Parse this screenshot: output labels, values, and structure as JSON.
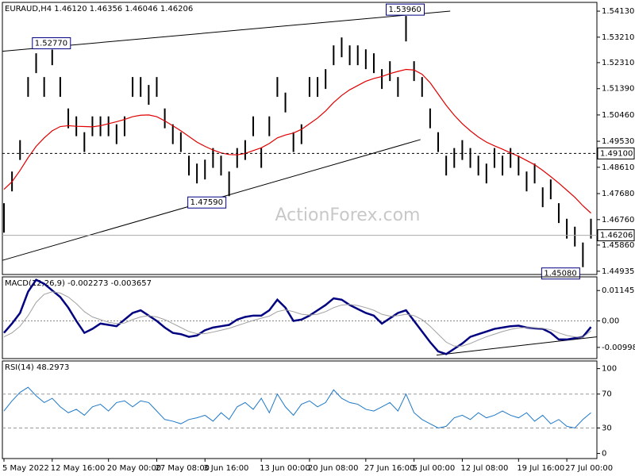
{
  "chart_data": [
    {
      "type": "ohlc",
      "title": "EURAUD,H4 1.46120 1.46356 1.46046 1.46206",
      "watermark": "ActionForex.com",
      "color": "#000000",
      "categories": [
        "5 May 2022",
        null,
        null,
        null,
        null,
        null,
        "12 May 16:00",
        null,
        null,
        null,
        null,
        null,
        null,
        "20 May 00:00",
        null,
        null,
        null,
        null,
        null,
        "27 May 08:00",
        null,
        null,
        null,
        null,
        null,
        "3 Jun 16:00",
        null,
        null,
        null,
        null,
        null,
        null,
        "13 Jun 00:00",
        null,
        null,
        null,
        null,
        null,
        "20 Jun 08:00",
        null,
        null,
        null,
        null,
        null,
        null,
        "27 Jun 16:00",
        null,
        null,
        null,
        null,
        null,
        "5 Jul 00:00",
        null,
        null,
        null,
        null,
        null,
        "12 Jul 08:00",
        null,
        null,
        null,
        null,
        null,
        null,
        "19 Jul 16:00",
        null,
        null,
        null,
        null,
        null,
        "27 Jul 00:00",
        null,
        null,
        null
      ],
      "high": [
        1.4734,
        1.4846,
        1.4957,
        1.518,
        1.5264,
        1.518,
        1.5277,
        1.518,
        1.5069,
        1.5041,
        1.4985,
        1.5041,
        1.5041,
        1.5041,
        1.5013,
        1.5041,
        1.518,
        1.518,
        1.5152,
        1.518,
        1.5069,
        1.5013,
        1.4985,
        1.4902,
        1.4874,
        1.4888,
        1.4929,
        1.4902,
        1.4846,
        1.4929,
        1.4957,
        1.5041,
        1.4929,
        1.5041,
        1.518,
        1.5125,
        1.4985,
        1.5013,
        1.518,
        1.518,
        1.5208,
        1.5292,
        1.532,
        1.5292,
        1.5292,
        1.5278,
        1.5264,
        1.5208,
        1.5236,
        1.518,
        1.5396,
        1.5236,
        1.518,
        1.5069,
        1.4985,
        1.4902,
        1.4929,
        1.4957,
        1.4929,
        1.4902,
        1.4874,
        1.4929,
        1.4902,
        1.4929,
        1.4902,
        1.4846,
        1.4874,
        1.479,
        1.4818,
        1.4734,
        1.4679,
        1.4651,
        1.4595,
        1.4679
      ],
      "low": [
        1.463,
        1.4776,
        1.4887,
        1.511,
        1.5194,
        1.511,
        1.5222,
        1.511,
        1.4999,
        1.4971,
        1.4915,
        1.4971,
        1.4971,
        1.4971,
        1.4943,
        1.4971,
        1.511,
        1.511,
        1.5082,
        1.511,
        1.4999,
        1.4943,
        1.4915,
        1.4832,
        1.4804,
        1.4818,
        1.4859,
        1.4832,
        1.4759,
        1.4859,
        1.4887,
        1.4971,
        1.4859,
        1.4971,
        1.511,
        1.5055,
        1.4915,
        1.4943,
        1.511,
        1.511,
        1.5138,
        1.5222,
        1.525,
        1.5222,
        1.5222,
        1.5208,
        1.5194,
        1.5138,
        1.5166,
        1.511,
        1.5306,
        1.5166,
        1.511,
        1.4999,
        1.4915,
        1.4832,
        1.4859,
        1.4887,
        1.4859,
        1.4832,
        1.4804,
        1.4859,
        1.4832,
        1.4859,
        1.4832,
        1.4776,
        1.4804,
        1.472,
        1.4748,
        1.4664,
        1.4609,
        1.4581,
        1.4508,
        1.4609
      ],
      "ma_color": "#e00000",
      "ma_values": [
        1.4783,
        1.481,
        1.485,
        1.4895,
        1.4935,
        1.4965,
        1.499,
        1.5005,
        1.5008,
        1.5006,
        1.5005,
        1.5004,
        1.5008,
        1.5015,
        1.5022,
        1.503,
        1.504,
        1.5045,
        1.5046,
        1.504,
        1.5025,
        1.5008,
        1.499,
        1.497,
        1.495,
        1.4935,
        1.4922,
        1.4912,
        1.4906,
        1.4905,
        1.491,
        1.492,
        1.493,
        1.4945,
        1.4965,
        1.4975,
        1.4982,
        1.4995,
        1.5015,
        1.5035,
        1.506,
        1.509,
        1.5115,
        1.5135,
        1.515,
        1.5165,
        1.5175,
        1.5182,
        1.5192,
        1.52,
        1.5207,
        1.5205,
        1.519,
        1.516,
        1.512,
        1.508,
        1.5045,
        1.5015,
        1.499,
        1.4968,
        1.495,
        1.4937,
        1.4925,
        1.4912,
        1.49,
        1.4885,
        1.487,
        1.485,
        1.4828,
        1.4805,
        1.478,
        1.4755,
        1.4725,
        1.4699
      ],
      "trendlines": [
        {
          "x": [
            -0.2,
            55.5
          ],
          "y": [
            1.5271,
            1.5413
          ]
        },
        {
          "x": [
            -0.2,
            51.8
          ],
          "y": [
            1.4532,
            1.4959
          ]
        }
      ],
      "annotations": [
        {
          "value": 1.5277,
          "label": "1.52770"
        },
        {
          "value": 1.5396,
          "label": "1.53960"
        },
        {
          "value": 1.4759,
          "label": "1.47590"
        },
        {
          "value": 1.4508,
          "label": "1.45080"
        }
      ],
      "hlines": [
        {
          "value": 1.491,
          "label": "1.49100",
          "dashed": true
        },
        {
          "value": 1.46206,
          "dashed": false
        }
      ],
      "ylim": [
        1.4482,
        1.5444
      ],
      "yticks": [
        {
          "value": 1.5413,
          "label": "1.54130"
        },
        {
          "value": 1.5321,
          "label": "1.53210"
        },
        {
          "value": 1.5231,
          "label": "1.52310"
        },
        {
          "value": 1.5139,
          "label": "1.51390"
        },
        {
          "value": 1.5046,
          "label": "1.50460"
        },
        {
          "value": 1.4953,
          "label": "1.49530"
        },
        {
          "value": 1.4861,
          "label": "1.48610"
        },
        {
          "value": 1.4768,
          "label": "1.47680"
        },
        {
          "value": 1.4676,
          "label": "1.46760"
        },
        {
          "value": 1.4586,
          "label": "1.45860"
        },
        {
          "value": 1.44935,
          "label": "1.44935"
        }
      ]
    },
    {
      "type": "line",
      "title": "MACD(12,26,9) -0.002273 -0.003657",
      "series": [
        {
          "color": "#000080",
          "width": 2.5,
          "values": [
            -0.0045,
            -0.001,
            0.003,
            0.011,
            0.0155,
            0.014,
            0.0115,
            0.009,
            0.005,
            0,
            -0.0045,
            -0.003,
            -0.001,
            -0.0015,
            -0.002,
            0.0005,
            0.003,
            0.004,
            0.002,
            0,
            -0.0025,
            -0.0045,
            -0.005,
            -0.006,
            -0.0055,
            -0.0035,
            -0.0025,
            -0.002,
            -0.0015,
            0.0005,
            0.0015,
            0.002,
            0.002,
            0.004,
            0.008,
            0.005,
            0,
            0.0005,
            0.002,
            0.004,
            0.006,
            0.0085,
            0.008,
            0.006,
            0.0045,
            0.003,
            0.002,
            -0.001,
            0.001,
            0.003,
            0.004,
            0,
            -0.004,
            -0.008,
            -0.0115,
            -0.0125,
            -0.0105,
            -0.0085,
            -0.006,
            -0.005,
            -0.004,
            -0.003,
            -0.0025,
            -0.002,
            -0.0018,
            -0.0025,
            -0.0028,
            -0.003,
            -0.0045,
            -0.007,
            -0.007,
            -0.0065,
            -0.006,
            -0.0023
          ]
        },
        {
          "color": "#a0a0a0",
          "width": 1,
          "values": [
            -0.006,
            -0.0045,
            -0.002,
            0.002,
            0.007,
            0.01,
            0.011,
            0.0105,
            0.009,
            0.0065,
            0.0035,
            0.0015,
            0.0005,
            -0.0005,
            -0.001,
            -0.0008,
            0.0005,
            0.0015,
            0.002,
            0.0015,
            0.0005,
            -0.001,
            -0.0025,
            -0.004,
            -0.0048,
            -0.0048,
            -0.0042,
            -0.0035,
            -0.0028,
            -0.0018,
            -0.0008,
            0.0002,
            0.001,
            0.0018,
            0.0035,
            0.0042,
            0.0035,
            0.0025,
            0.0022,
            0.0025,
            0.0035,
            0.005,
            0.006,
            0.0062,
            0.0058,
            0.005,
            0.004,
            0.0025,
            0.0018,
            0.002,
            0.0025,
            0.002,
            0.0005,
            -0.002,
            -0.005,
            -0.008,
            -0.0095,
            -0.0095,
            -0.0085,
            -0.0072,
            -0.006,
            -0.005,
            -0.004,
            -0.0032,
            -0.0026,
            -0.0025,
            -0.0026,
            -0.0028,
            -0.0033,
            -0.0045,
            -0.0055,
            -0.006,
            -0.0062,
            -0.0037
          ]
        }
      ],
      "trendlines": [
        {
          "x": [
            53.8,
            73.7
          ],
          "y": [
            -0.0129,
            -0.006
          ]
        }
      ],
      "ylim": [
        -0.0142,
        0.0166
      ],
      "yticks": [
        0.01145,
        {
          "value": 0,
          "label": "0.00"
        },
        -0.009985
      ]
    },
    {
      "type": "line",
      "title": "RSI(14) 48.2973",
      "series": [
        {
          "color": "#1e78c8",
          "width": 1,
          "values": [
            50,
            62,
            72,
            78,
            68,
            60,
            65,
            55,
            48,
            52,
            45,
            55,
            58,
            50,
            60,
            62,
            55,
            62,
            60,
            50,
            40,
            38,
            35,
            40,
            42,
            45,
            38,
            48,
            40,
            55,
            60,
            52,
            65,
            48,
            70,
            55,
            45,
            58,
            62,
            55,
            60,
            75,
            65,
            60,
            58,
            52,
            50,
            55,
            60,
            50,
            70,
            48,
            40,
            35,
            30,
            32,
            42,
            45,
            40,
            48,
            42,
            45,
            50,
            45,
            42,
            48,
            38,
            45,
            35,
            40,
            32,
            30,
            40,
            48
          ]
        }
      ],
      "ylim": [
        -6,
        109
      ],
      "yticks": [
        100,
        70,
        30,
        0
      ],
      "grid_ticks": [
        70,
        30
      ]
    }
  ]
}
